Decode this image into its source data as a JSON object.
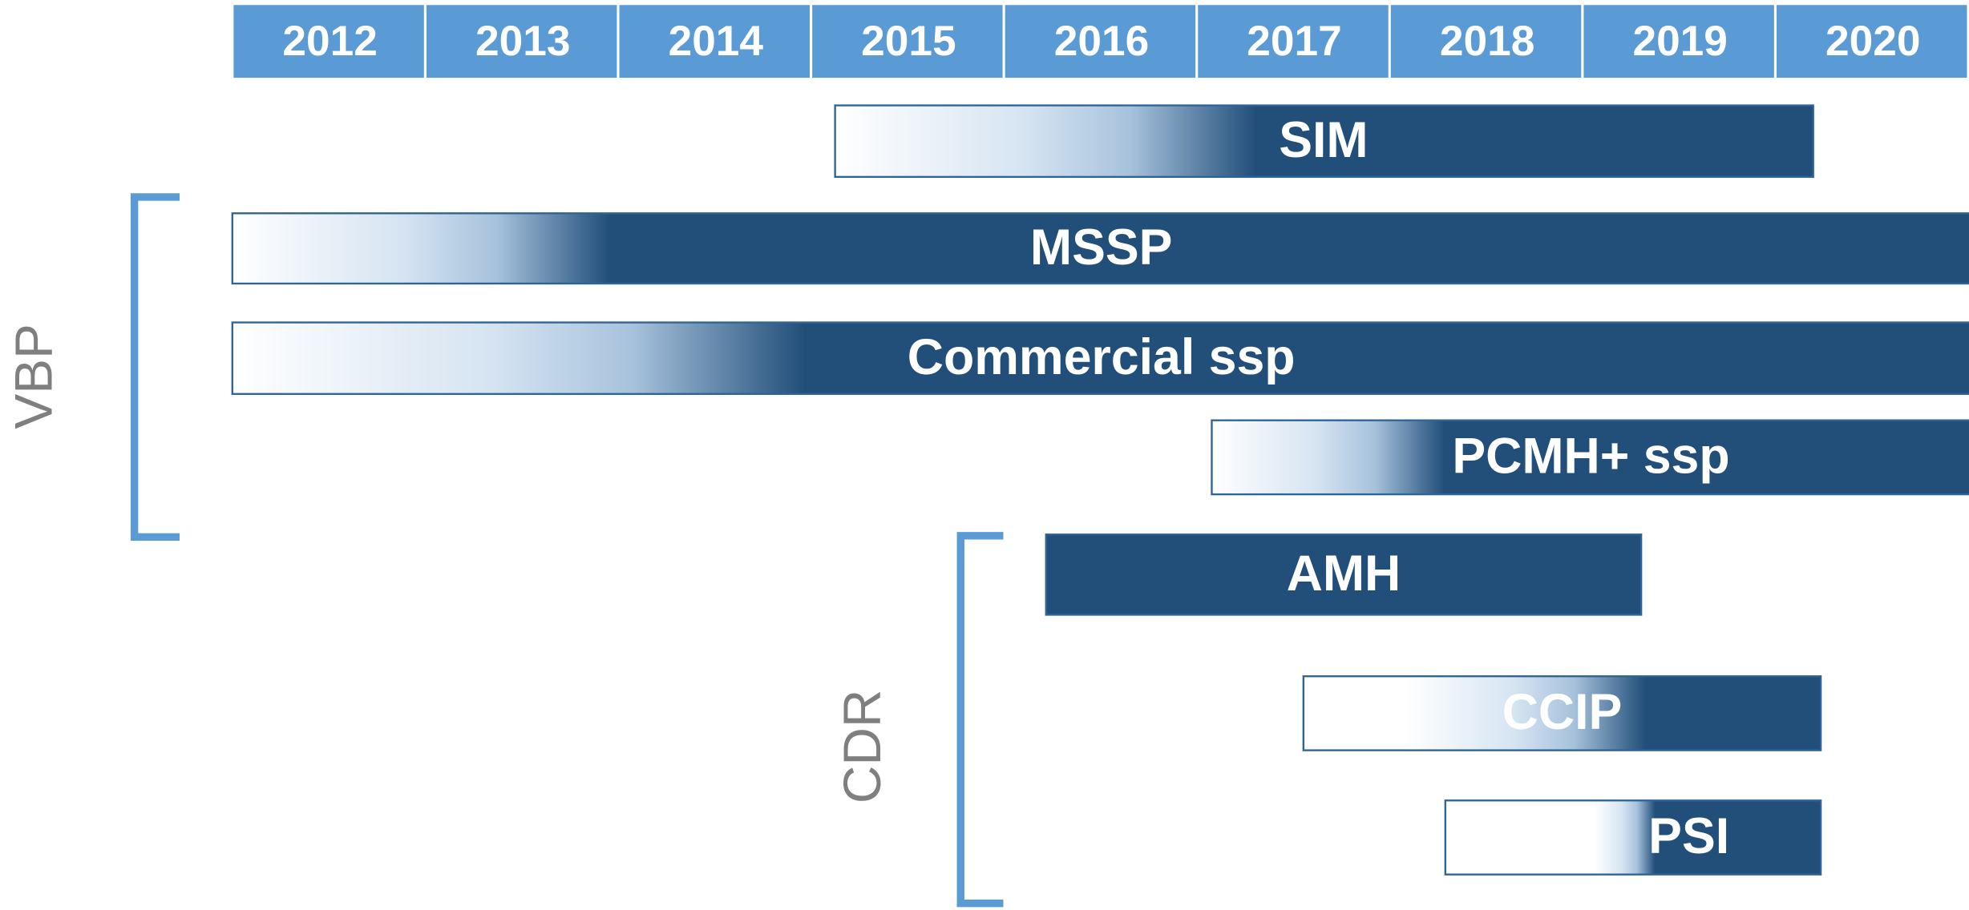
{
  "header": {
    "years": [
      "2012",
      "2013",
      "2014",
      "2015",
      "2016",
      "2017",
      "2018",
      "2019",
      "2020"
    ]
  },
  "bars": [
    {
      "label": "SIM"
    },
    {
      "label": "MSSP"
    },
    {
      "label": "Commercial ssp"
    },
    {
      "label": "PCMH+ ssp"
    },
    {
      "label": "AMH"
    },
    {
      "label": "CCIP"
    },
    {
      "label": "PSI"
    }
  ],
  "groups": [
    {
      "label": "VBP"
    },
    {
      "label": "CDR"
    }
  ]
}
